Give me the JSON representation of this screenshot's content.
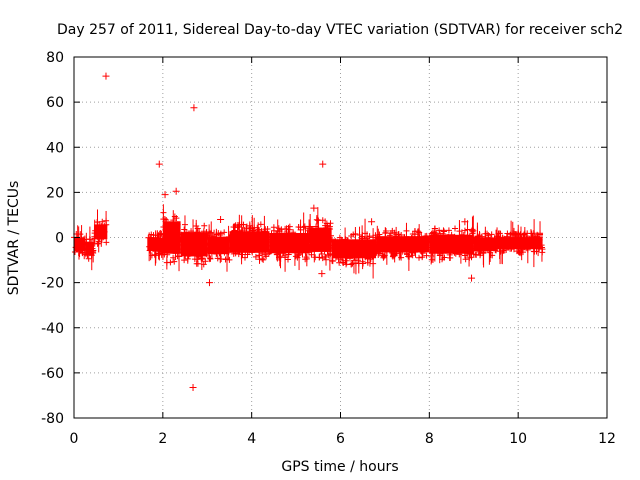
{
  "chart_data": {
    "type": "scatter",
    "title": "Day 257 of 2011, Sidereal Day-to-day VTEC variation (SDTVAR) for receiver sch2",
    "xlabel": "GPS time / hours",
    "ylabel": "SDTVAR / TECUs",
    "xlim": [
      0,
      12
    ],
    "ylim": [
      -80,
      80
    ],
    "xticks": [
      0,
      2,
      4,
      6,
      8,
      10,
      12
    ],
    "yticks": [
      -80,
      -60,
      -40,
      -20,
      0,
      20,
      40,
      60,
      80
    ],
    "grid": true,
    "marker": "+",
    "color": "#ff0000",
    "dense_bands": [
      {
        "x_start": 0.0,
        "x_end": 0.25,
        "y_low": -8,
        "y_high": 2
      },
      {
        "x_start": 0.25,
        "x_end": 0.45,
        "y_low": -10,
        "y_high": 0
      },
      {
        "x_start": 0.45,
        "x_end": 0.75,
        "y_low": -3,
        "y_high": 8
      },
      {
        "x_start": 1.65,
        "x_end": 2.0,
        "y_low": -8,
        "y_high": 2
      },
      {
        "x_start": 2.0,
        "x_end": 2.4,
        "y_low": -12,
        "y_high": 12
      },
      {
        "x_start": 2.4,
        "x_end": 3.0,
        "y_low": -12,
        "y_high": 6
      },
      {
        "x_start": 3.0,
        "x_end": 3.5,
        "y_low": -10,
        "y_high": 3
      },
      {
        "x_start": 3.5,
        "x_end": 4.4,
        "y_low": -10,
        "y_high": 6
      },
      {
        "x_start": 4.4,
        "x_end": 5.3,
        "y_low": -10,
        "y_high": 5
      },
      {
        "x_start": 5.3,
        "x_end": 5.8,
        "y_low": -10,
        "y_high": 8
      },
      {
        "x_start": 5.8,
        "x_end": 6.8,
        "y_low": -12,
        "y_high": 2
      },
      {
        "x_start": 6.8,
        "x_end": 8.0,
        "y_low": -9,
        "y_high": 3
      },
      {
        "x_start": 8.0,
        "x_end": 9.0,
        "y_low": -10,
        "y_high": 4
      },
      {
        "x_start": 9.0,
        "x_end": 9.5,
        "y_low": -8,
        "y_high": 2
      },
      {
        "x_start": 9.5,
        "x_end": 10.55,
        "y_low": -7,
        "y_high": 2
      }
    ],
    "outliers": [
      {
        "x": 0.72,
        "y": 71.5
      },
      {
        "x": 1.92,
        "y": 32.5
      },
      {
        "x": 2.7,
        "y": 57.5
      },
      {
        "x": 2.68,
        "y": -66.5
      },
      {
        "x": 2.3,
        "y": 20.5
      },
      {
        "x": 2.05,
        "y": 19.0
      },
      {
        "x": 3.05,
        "y": -20.0
      },
      {
        "x": 5.6,
        "y": 32.5
      },
      {
        "x": 5.58,
        "y": -16.0
      },
      {
        "x": 8.8,
        "y": 7.0
      },
      {
        "x": 8.95,
        "y": -18.0
      },
      {
        "x": 3.3,
        "y": 8.0
      },
      {
        "x": 6.7,
        "y": 7.0
      },
      {
        "x": 5.4,
        "y": 13.0
      }
    ]
  }
}
